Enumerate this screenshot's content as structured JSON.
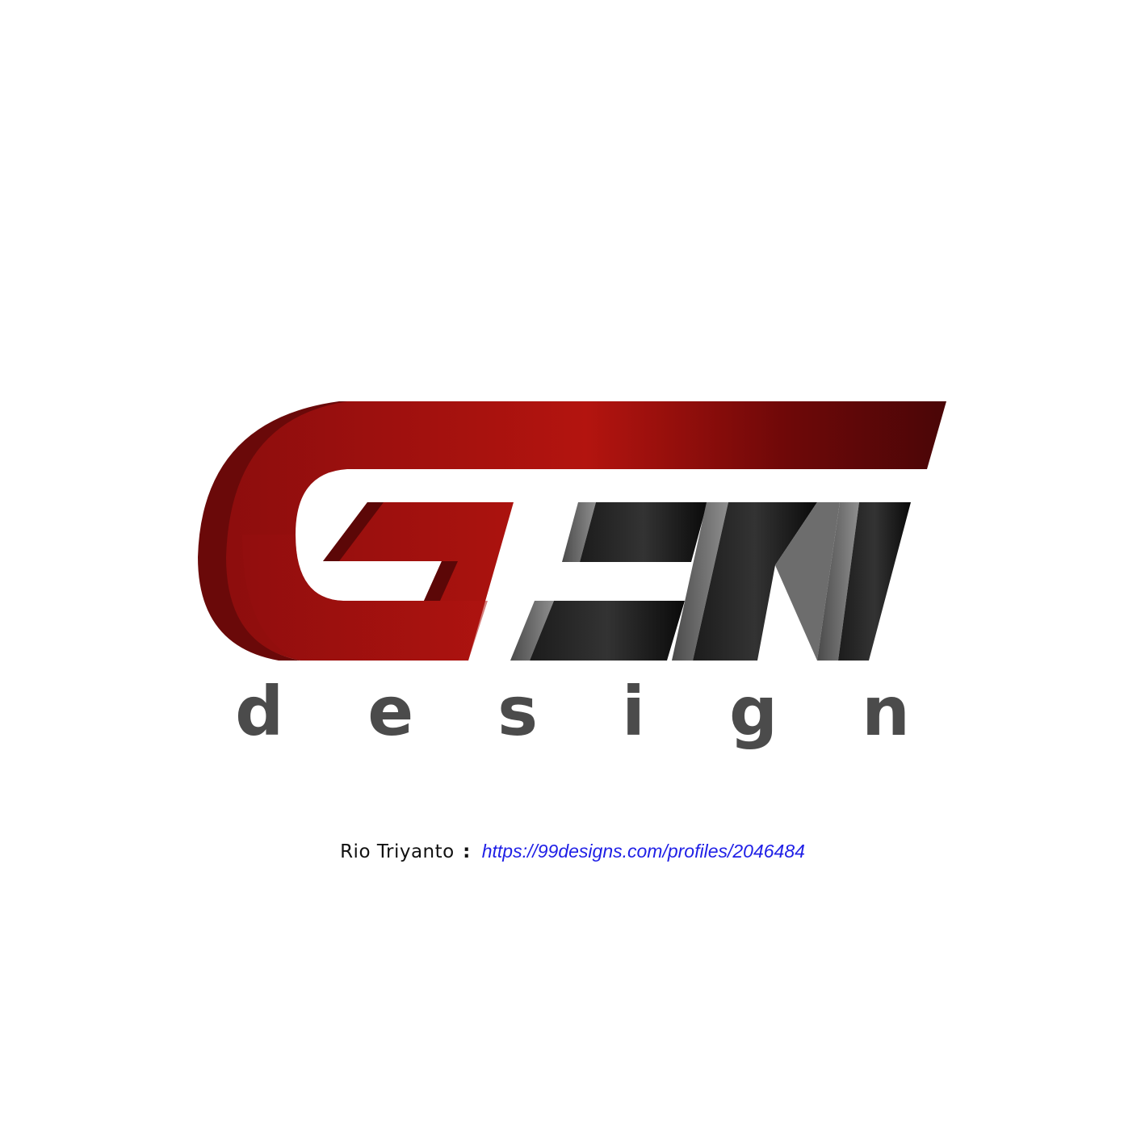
{
  "logo": {
    "wordmark": "GEN",
    "tagline": "design",
    "colors": {
      "red_light": "#b3140f",
      "red_dark": "#4a0607",
      "red_side": "#7a0a0a",
      "black_light": "#3a3a3a",
      "black_dark": "#050505",
      "grey_side": "#8a8a8a",
      "tagline_grey": "#4b4b4b"
    }
  },
  "credit": {
    "author": "Rio Triyanto",
    "separator": ":",
    "link_text": "https://99designs.com/profiles/2046484",
    "link_color": "#1f1fe6"
  }
}
